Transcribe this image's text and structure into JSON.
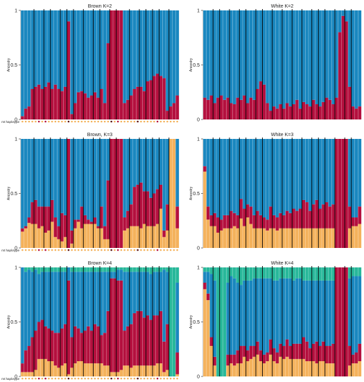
{
  "colors": {
    "c1": "#1a87bf",
    "c2": "#b4103e",
    "c3": "#f4b25c",
    "c4": "#28b89a",
    "separator": "#000000",
    "hap_orange": "#f4b25c",
    "hap_dark": "#5a1010",
    "hap_red": "#b4103e"
  },
  "y_label": "Ancestry",
  "hap_label": "mt haplotype",
  "chart_data": [
    {
      "type": "bar",
      "stacked": true,
      "title": "Brown K=2",
      "ylabel": "Ancestry",
      "ylim": [
        0,
        1
      ],
      "yticks": [
        {
          "v": 0,
          "label": "0"
        },
        {
          "v": 0.5,
          "label": "0.5"
        },
        {
          "v": 1,
          "label": "1"
        }
      ],
      "k": 2,
      "n": 48,
      "separators": [
        4,
        7,
        9,
        12,
        14,
        16,
        19,
        22,
        24,
        27,
        29,
        33,
        36,
        38,
        40,
        42,
        45
      ],
      "cluster1": [
        0.97,
        0.9,
        0.88,
        0.72,
        0.7,
        0.68,
        0.72,
        0.7,
        0.66,
        0.72,
        0.68,
        0.72,
        0.74,
        0.7,
        0.1,
        0.95,
        0.85,
        0.75,
        0.74,
        0.76,
        0.8,
        0.78,
        0.75,
        0.8,
        0.72,
        0.85,
        0.3,
        0.0,
        0.0,
        0.0,
        0.0,
        0.85,
        0.82,
        0.78,
        0.72,
        0.7,
        0.7,
        0.74,
        0.65,
        0.64,
        0.6,
        0.58,
        0.6,
        0.62,
        0.92,
        0.88,
        0.85,
        0.78
      ],
      "hap": [
        "o",
        "o",
        "o",
        "o",
        "o",
        "r",
        "o",
        "r",
        "o",
        "o",
        "o",
        "o",
        "o",
        "o",
        "d",
        "o",
        "o",
        "o",
        "o",
        "o",
        "o",
        "o",
        "o",
        "o",
        "o",
        "o",
        "o",
        "d",
        "o",
        "r",
        "o",
        "o",
        "o",
        "o",
        "o",
        "d",
        "o",
        "o",
        "o",
        "o",
        "o",
        "r",
        "o",
        "o",
        "o",
        "o",
        "o",
        "o"
      ]
    },
    {
      "type": "bar",
      "stacked": true,
      "title": "White K=2",
      "ylabel": "Ancestry",
      "ylim": [
        0,
        1
      ],
      "yticks": [
        {
          "v": 0,
          "label": "0"
        },
        {
          "v": 0.5,
          "label": "0.5"
        },
        {
          "v": 1,
          "label": "1"
        }
      ],
      "k": 2,
      "n": 48,
      "separators": [
        3,
        5,
        8,
        11,
        13,
        16,
        18,
        21,
        24,
        27,
        30,
        33,
        35,
        37,
        40,
        43,
        45
      ],
      "cluster1": [
        0.8,
        0.82,
        0.78,
        0.85,
        0.8,
        0.78,
        0.82,
        0.8,
        0.85,
        0.86,
        0.8,
        0.82,
        0.78,
        0.85,
        0.8,
        0.82,
        0.72,
        0.65,
        0.68,
        0.85,
        0.92,
        0.88,
        0.9,
        0.86,
        0.9,
        0.85,
        0.88,
        0.86,
        0.82,
        0.9,
        0.84,
        0.86,
        0.88,
        0.82,
        0.86,
        0.88,
        0.84,
        0.8,
        0.82,
        0.86,
        0.8,
        0.2,
        0.05,
        0.1,
        0.7,
        0.88,
        0.9,
        0.88
      ],
      "hap": []
    },
    {
      "type": "bar",
      "stacked": true,
      "title": "Brown, K=3",
      "ylabel": "Ancestry",
      "ylim": [
        0,
        1
      ],
      "yticks": [
        {
          "v": 0,
          "label": "0"
        },
        {
          "v": 0.5,
          "label": "0.5"
        },
        {
          "v": 1,
          "label": "1"
        }
      ],
      "k": 3,
      "n": 48,
      "separators": [
        4,
        7,
        9,
        12,
        14,
        16,
        19,
        22,
        24,
        27,
        29,
        33,
        36,
        38,
        40,
        42,
        45
      ],
      "cluster1": [
        0.82,
        0.8,
        0.72,
        0.58,
        0.56,
        0.62,
        0.62,
        0.62,
        0.62,
        0.56,
        0.72,
        0.8,
        0.68,
        0.7,
        0.0,
        0.84,
        0.74,
        0.74,
        0.62,
        0.7,
        0.74,
        0.76,
        0.72,
        0.8,
        0.62,
        0.8,
        0.38,
        0.0,
        0.0,
        0.0,
        0.0,
        0.72,
        0.66,
        0.6,
        0.44,
        0.42,
        0.4,
        0.48,
        0.48,
        0.54,
        0.5,
        0.46,
        0.42,
        0.84,
        0.6,
        0.0,
        0.0,
        0.62
      ],
      "cluster2": [
        0.03,
        0.02,
        0.05,
        0.2,
        0.22,
        0.2,
        0.18,
        0.24,
        0.22,
        0.2,
        0.18,
        0.12,
        0.26,
        0.2,
        1.0,
        0.12,
        0.08,
        0.02,
        0.2,
        0.08,
        0.04,
        0.02,
        0.06,
        0.02,
        0.2,
        0.12,
        0.54,
        1.0,
        1.0,
        1.0,
        1.0,
        0.12,
        0.16,
        0.2,
        0.36,
        0.38,
        0.42,
        0.3,
        0.32,
        0.26,
        0.3,
        0.32,
        0.22,
        0.06,
        0.24,
        0.0,
        0.0,
        0.2
      ],
      "hap": [
        "o",
        "o",
        "o",
        "o",
        "o",
        "r",
        "o",
        "r",
        "o",
        "o",
        "o",
        "o",
        "o",
        "o",
        "d",
        "o",
        "o",
        "o",
        "o",
        "o",
        "o",
        "o",
        "o",
        "o",
        "o",
        "o",
        "o",
        "d",
        "o",
        "r",
        "o",
        "o",
        "o",
        "o",
        "o",
        "d",
        "o",
        "o",
        "o",
        "o",
        "o",
        "r",
        "o",
        "o",
        "o",
        "o",
        "o",
        "o"
      ]
    },
    {
      "type": "bar",
      "stacked": true,
      "title": "White K=3",
      "ylabel": "Ancestry",
      "ylim": [
        0,
        1
      ],
      "yticks": [
        {
          "v": 0,
          "label": "0"
        },
        {
          "v": 0.5,
          "label": "0.5"
        },
        {
          "v": 1,
          "label": "1"
        }
      ],
      "k": 3,
      "n": 48,
      "separators": [
        3,
        5,
        8,
        11,
        13,
        16,
        18,
        21,
        24,
        27,
        30,
        33,
        35,
        37,
        40,
        43,
        45
      ],
      "cluster1": [
        0.25,
        0.62,
        0.7,
        0.68,
        0.72,
        0.74,
        0.7,
        0.7,
        0.66,
        0.68,
        0.7,
        0.55,
        0.64,
        0.6,
        0.62,
        0.7,
        0.66,
        0.7,
        0.72,
        0.74,
        0.62,
        0.7,
        0.72,
        0.68,
        0.7,
        0.66,
        0.68,
        0.64,
        0.66,
        0.64,
        0.56,
        0.58,
        0.66,
        0.6,
        0.56,
        0.64,
        0.6,
        0.58,
        0.62,
        0.6,
        0.0,
        0.0,
        0.0,
        0.0,
        0.62,
        0.72,
        0.72,
        0.62
      ],
      "cluster2": [
        0.05,
        0.12,
        0.1,
        0.12,
        0.14,
        0.1,
        0.12,
        0.12,
        0.16,
        0.12,
        0.12,
        0.18,
        0.16,
        0.12,
        0.16,
        0.12,
        0.16,
        0.12,
        0.1,
        0.1,
        0.2,
        0.12,
        0.12,
        0.14,
        0.12,
        0.16,
        0.14,
        0.18,
        0.16,
        0.18,
        0.26,
        0.24,
        0.16,
        0.22,
        0.26,
        0.18,
        0.22,
        0.24,
        0.2,
        0.22,
        1.0,
        1.0,
        1.0,
        1.0,
        0.2,
        0.08,
        0.08,
        0.16
      ],
      "hap": []
    },
    {
      "type": "bar",
      "stacked": true,
      "title": "Brown K=4",
      "ylabel": "Ancestry",
      "ylim": [
        0,
        1
      ],
      "yticks": [
        {
          "v": 0,
          "label": "0"
        },
        {
          "v": 0.5,
          "label": "0.5"
        },
        {
          "v": 1,
          "label": "1"
        }
      ],
      "k": 4,
      "n": 48,
      "separators": [
        4,
        7,
        9,
        12,
        14,
        16,
        19,
        22,
        24,
        27,
        29,
        33,
        36,
        38,
        40,
        42,
        45
      ],
      "cluster1": [
        0.88,
        0.72,
        0.7,
        0.6,
        0.56,
        0.44,
        0.44,
        0.5,
        0.52,
        0.54,
        0.56,
        0.56,
        0.52,
        0.48,
        0.12,
        0.6,
        0.5,
        0.52,
        0.56,
        0.54,
        0.5,
        0.54,
        0.48,
        0.5,
        0.58,
        0.56,
        0.36,
        0.06,
        0.06,
        0.1,
        0.1,
        0.54,
        0.5,
        0.48,
        0.38,
        0.36,
        0.36,
        0.42,
        0.4,
        0.42,
        0.4,
        0.4,
        0.36,
        0.66,
        0.48,
        0.0,
        0.0,
        0.64
      ],
      "cluster2": [
        0.08,
        0.2,
        0.24,
        0.32,
        0.36,
        0.34,
        0.36,
        0.3,
        0.3,
        0.28,
        0.3,
        0.32,
        0.34,
        0.36,
        0.86,
        0.28,
        0.34,
        0.3,
        0.26,
        0.3,
        0.34,
        0.3,
        0.36,
        0.34,
        0.26,
        0.3,
        0.5,
        0.86,
        0.86,
        0.84,
        0.82,
        0.32,
        0.36,
        0.4,
        0.48,
        0.5,
        0.5,
        0.44,
        0.46,
        0.42,
        0.46,
        0.44,
        0.48,
        0.28,
        0.42,
        0.0,
        0.0,
        0.2
      ],
      "cluster3": [
        0.04,
        0.04,
        0.04,
        0.04,
        0.06,
        0.16,
        0.16,
        0.16,
        0.14,
        0.14,
        0.1,
        0.08,
        0.1,
        0.12,
        0.02,
        0.08,
        0.12,
        0.14,
        0.14,
        0.12,
        0.12,
        0.12,
        0.12,
        0.12,
        0.12,
        0.1,
        0.1,
        0.04,
        0.04,
        0.04,
        0.06,
        0.1,
        0.1,
        0.08,
        0.1,
        0.1,
        0.1,
        0.1,
        0.1,
        0.1,
        0.1,
        0.12,
        0.12,
        0.04,
        0.06,
        0.0,
        0.0,
        0.02
      ],
      "hap": [
        "o",
        "o",
        "o",
        "o",
        "o",
        "r",
        "o",
        "r",
        "o",
        "o",
        "o",
        "o",
        "o",
        "o",
        "d",
        "o",
        "o",
        "o",
        "o",
        "o",
        "o",
        "o",
        "o",
        "o",
        "o",
        "o",
        "o",
        "d",
        "o",
        "r",
        "o",
        "o",
        "o",
        "o",
        "o",
        "d",
        "o",
        "o",
        "o",
        "o",
        "o",
        "r",
        "o",
        "o",
        "o",
        "o",
        "o",
        "o"
      ]
    },
    {
      "type": "bar",
      "stacked": true,
      "title": "White K=4",
      "ylabel": "Ancestry",
      "ylim": [
        0,
        1
      ],
      "yticks": [
        {
          "v": 0,
          "label": "0"
        },
        {
          "v": 0.5,
          "label": "0.5"
        },
        {
          "v": 1,
          "label": "1"
        }
      ],
      "k": 4,
      "n": 48,
      "separators": [
        3,
        5,
        8,
        11,
        13,
        16,
        18,
        21,
        24,
        27,
        30,
        33,
        35,
        37,
        40,
        43,
        45
      ],
      "cluster1": [
        0.1,
        0.2,
        0.58,
        0.7,
        0.0,
        0.0,
        0.0,
        0.66,
        0.72,
        0.7,
        0.62,
        0.56,
        0.6,
        0.64,
        0.6,
        0.62,
        0.58,
        0.66,
        0.7,
        0.68,
        0.56,
        0.62,
        0.66,
        0.6,
        0.62,
        0.56,
        0.62,
        0.58,
        0.6,
        0.6,
        0.52,
        0.56,
        0.62,
        0.58,
        0.56,
        0.6,
        0.56,
        0.6,
        0.6,
        0.58,
        0.0,
        0.0,
        0.0,
        0.0,
        0.62,
        0.72,
        0.7,
        0.62
      ],
      "cluster2": [
        0.06,
        0.06,
        0.08,
        0.08,
        0.0,
        0.0,
        0.0,
        0.1,
        0.08,
        0.1,
        0.12,
        0.16,
        0.1,
        0.1,
        0.12,
        0.1,
        0.12,
        0.1,
        0.08,
        0.08,
        0.14,
        0.12,
        0.1,
        0.12,
        0.12,
        0.16,
        0.12,
        0.14,
        0.14,
        0.14,
        0.2,
        0.18,
        0.12,
        0.16,
        0.2,
        0.14,
        0.18,
        0.16,
        0.16,
        0.18,
        1.0,
        1.0,
        1.0,
        1.0,
        0.18,
        0.08,
        0.1,
        0.16
      ],
      "cluster3": [
        0.8,
        0.7,
        0.28,
        0.1,
        0.0,
        0.0,
        0.0,
        0.1,
        0.12,
        0.1,
        0.12,
        0.12,
        0.18,
        0.14,
        0.16,
        0.18,
        0.2,
        0.14,
        0.12,
        0.14,
        0.2,
        0.14,
        0.12,
        0.18,
        0.16,
        0.18,
        0.16,
        0.16,
        0.16,
        0.16,
        0.16,
        0.14,
        0.14,
        0.14,
        0.12,
        0.14,
        0.14,
        0.12,
        0.12,
        0.12,
        0.0,
        0.0,
        0.0,
        0.0,
        0.1,
        0.12,
        0.12,
        0.14
      ],
      "hap": []
    }
  ]
}
